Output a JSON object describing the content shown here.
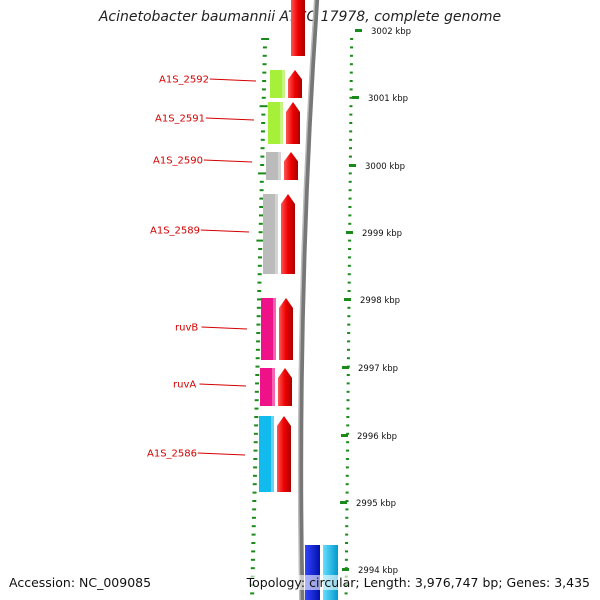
{
  "title": "Acinetobacter baumannii ATCC 17978, complete genome",
  "footer": {
    "accession": "Accession: NC_009085",
    "topology": "Topology: circular; Length: 3,976,747 bp; Genes: 3,435"
  },
  "colors": {
    "forward_strand": "#ee0000",
    "backbone": "#888888",
    "tick": "#1a8a1a",
    "label": "#d40000"
  },
  "scale_labels": [
    "3002 kbp",
    "3001 kbp",
    "3000 kbp",
    "2999 kbp",
    "2998 kbp",
    "2997 kbp",
    "2996 kbp",
    "2995 kbp",
    "2994 kbp"
  ],
  "genes": [
    {
      "name": "A1S_2592",
      "color": "#a6f03a"
    },
    {
      "name": "A1S_2591",
      "color": "#a6f03a"
    },
    {
      "name": "A1S_2590",
      "color": "#bbbbbb"
    },
    {
      "name": "A1S_2589",
      "color": "#bbbbbb"
    },
    {
      "name": "ruvB",
      "color": "#ee1188"
    },
    {
      "name": "ruvA",
      "color": "#ee1188"
    },
    {
      "name": "A1S_2586",
      "color": "#11bbee"
    }
  ]
}
